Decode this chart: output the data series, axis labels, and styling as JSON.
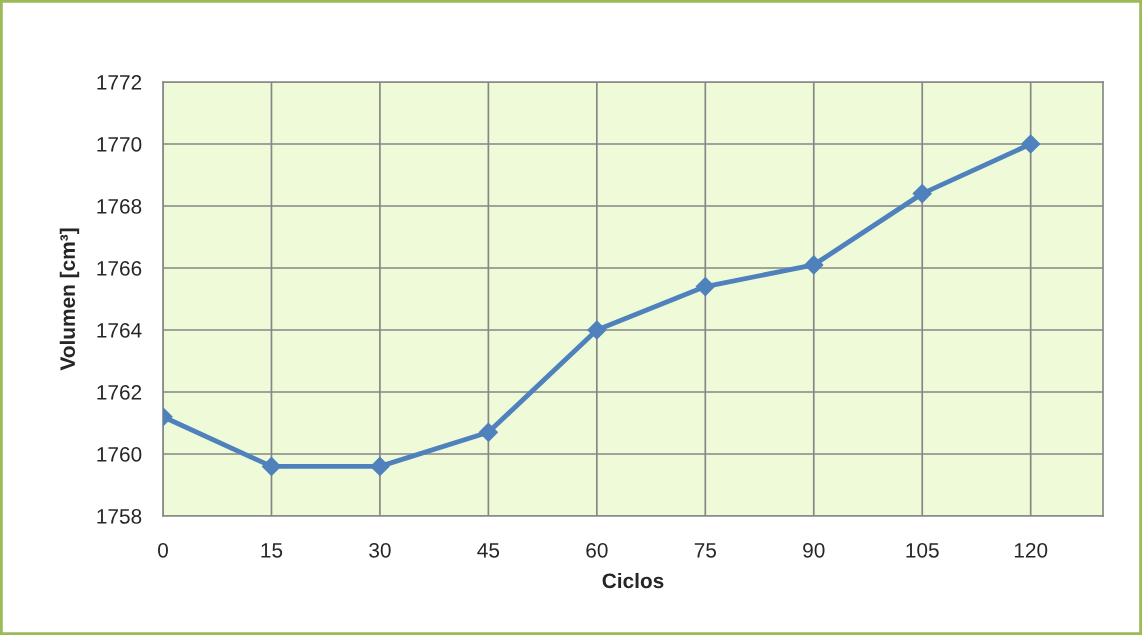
{
  "chart_data": {
    "type": "line",
    "xlabel": "Ciclos",
    "ylabel": "Volumen [cm³]",
    "x": [
      0,
      15,
      30,
      45,
      60,
      75,
      90,
      105,
      120
    ],
    "series": [
      {
        "color": "#4f81bd",
        "values": [
          1761.2,
          1759.6,
          1759.6,
          1760.7,
          1764.0,
          1765.4,
          1766.1,
          1768.4,
          1770.0
        ]
      }
    ],
    "xlim": [
      0,
      130
    ],
    "xticks": [
      0,
      15,
      30,
      45,
      60,
      75,
      90,
      105,
      120
    ],
    "ylim": [
      1758,
      1772
    ],
    "yticks": [
      1758,
      1760,
      1762,
      1764,
      1766,
      1768,
      1770,
      1772
    ],
    "grid": true,
    "marker": "diamond",
    "line_style": "solid"
  }
}
